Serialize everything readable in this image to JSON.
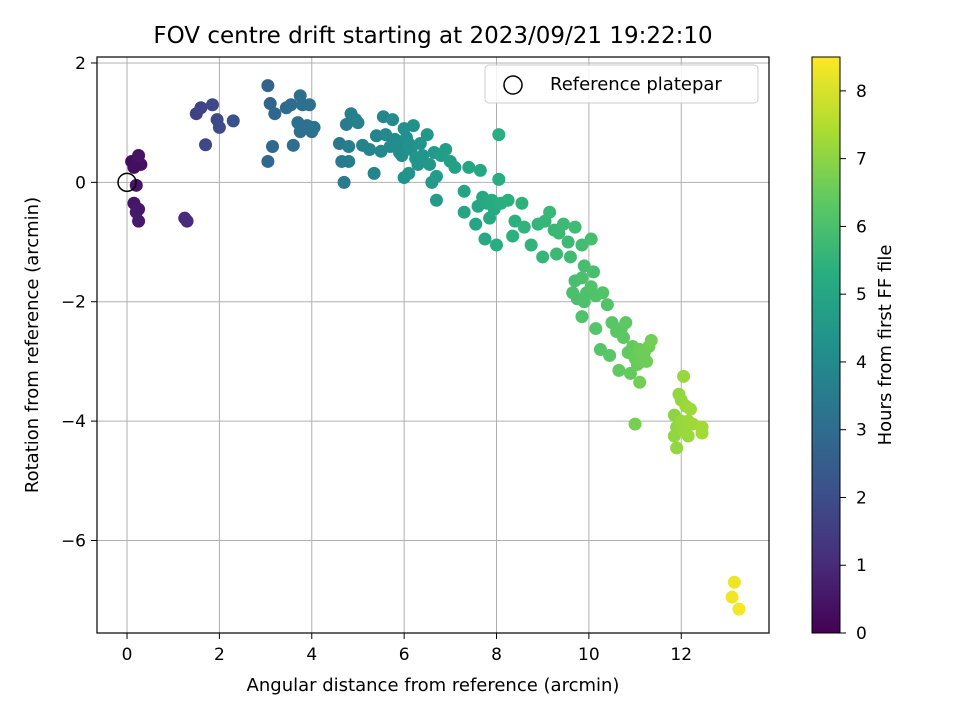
{
  "chart_data": {
    "type": "scatter",
    "title": "FOV centre drift starting at 2023/09/21 19:22:10",
    "xlabel": "Angular distance from reference (arcmin)",
    "ylabel": "Rotation from reference (arcmin)",
    "xlim": [
      -0.65,
      13.9
    ],
    "ylim": [
      -7.55,
      2.1
    ],
    "xticks": [
      0,
      2,
      4,
      6,
      8,
      10,
      12
    ],
    "yticks": [
      -6,
      -4,
      -2,
      0,
      2
    ],
    "xtick_labels": [
      "0",
      "2",
      "4",
      "6",
      "8",
      "10",
      "12"
    ],
    "ytick_labels": [
      "−6",
      "−4",
      "−2",
      "0",
      "2"
    ],
    "grid": true,
    "legend": {
      "position": "top-right",
      "entries": [
        {
          "label": "Reference platepar",
          "marker": "open-circle"
        }
      ]
    },
    "reference_point": {
      "x": 0,
      "y": 0
    },
    "colorbar": {
      "label": "Hours from first FF file",
      "colormap": "viridis",
      "range": [
        0,
        8.5
      ],
      "ticks": [
        0,
        1,
        2,
        3,
        4,
        5,
        6,
        7,
        8
      ],
      "tick_labels": [
        "0",
        "1",
        "2",
        "3",
        "4",
        "5",
        "6",
        "7",
        "8"
      ]
    },
    "series": [
      {
        "points": [
          {
            "x": 0.1,
            "y": 0.35,
            "c": 0.3
          },
          {
            "x": 0.2,
            "y": 0.3,
            "c": 0.4
          },
          {
            "x": 0.3,
            "y": 0.3,
            "c": 0.4
          },
          {
            "x": 0.25,
            "y": 0.45,
            "c": 0.45
          },
          {
            "x": 0.15,
            "y": 0.25,
            "c": 0.35
          },
          {
            "x": 0.2,
            "y": -0.05,
            "c": 0.5
          },
          {
            "x": 0.15,
            "y": -0.35,
            "c": 0.5
          },
          {
            "x": 0.25,
            "y": -0.45,
            "c": 0.55
          },
          {
            "x": 0.2,
            "y": -0.5,
            "c": 0.55
          },
          {
            "x": 0.25,
            "y": -0.65,
            "c": 0.6
          },
          {
            "x": 1.25,
            "y": -0.6,
            "c": 1.0
          },
          {
            "x": 1.3,
            "y": -0.65,
            "c": 1.05
          },
          {
            "x": 1.5,
            "y": 1.15,
            "c": 1.6
          },
          {
            "x": 1.6,
            "y": 1.25,
            "c": 1.7
          },
          {
            "x": 1.85,
            "y": 1.3,
            "c": 1.8
          },
          {
            "x": 1.95,
            "y": 1.05,
            "c": 1.9
          },
          {
            "x": 2.0,
            "y": 0.92,
            "c": 1.95
          },
          {
            "x": 1.7,
            "y": 0.63,
            "c": 1.85
          },
          {
            "x": 2.3,
            "y": 1.03,
            "c": 2.1
          },
          {
            "x": 3.05,
            "y": 1.62,
            "c": 2.7
          },
          {
            "x": 3.1,
            "y": 1.32,
            "c": 2.75
          },
          {
            "x": 3.2,
            "y": 1.15,
            "c": 2.8
          },
          {
            "x": 3.15,
            "y": 0.6,
            "c": 2.85
          },
          {
            "x": 3.05,
            "y": 0.35,
            "c": 2.9
          },
          {
            "x": 3.45,
            "y": 1.25,
            "c": 2.95
          },
          {
            "x": 3.55,
            "y": 1.3,
            "c": 3.0
          },
          {
            "x": 3.6,
            "y": 0.62,
            "c": 3.05
          },
          {
            "x": 3.75,
            "y": 1.45,
            "c": 3.05
          },
          {
            "x": 3.8,
            "y": 1.3,
            "c": 3.1
          },
          {
            "x": 3.7,
            "y": 1.0,
            "c": 3.1
          },
          {
            "x": 3.75,
            "y": 0.85,
            "c": 3.15
          },
          {
            "x": 3.9,
            "y": 0.95,
            "c": 3.2
          },
          {
            "x": 3.95,
            "y": 1.3,
            "c": 3.15
          },
          {
            "x": 4.0,
            "y": 0.85,
            "c": 3.2
          },
          {
            "x": 4.05,
            "y": 0.92,
            "c": 3.25
          },
          {
            "x": 4.6,
            "y": 0.65,
            "c": 3.4
          },
          {
            "x": 4.65,
            "y": 0.35,
            "c": 3.5
          },
          {
            "x": 4.7,
            "y": 0.0,
            "c": 3.5
          },
          {
            "x": 4.8,
            "y": 0.35,
            "c": 3.55
          },
          {
            "x": 4.8,
            "y": 0.6,
            "c": 3.55
          },
          {
            "x": 4.75,
            "y": 0.97,
            "c": 3.5
          },
          {
            "x": 4.85,
            "y": 1.15,
            "c": 3.6
          },
          {
            "x": 4.95,
            "y": 1.05,
            "c": 3.65
          },
          {
            "x": 5.0,
            "y": 1.0,
            "c": 3.7
          },
          {
            "x": 5.1,
            "y": 0.62,
            "c": 3.75
          },
          {
            "x": 5.25,
            "y": 0.55,
            "c": 3.8
          },
          {
            "x": 5.35,
            "y": 0.15,
            "c": 3.8
          },
          {
            "x": 5.4,
            "y": 0.78,
            "c": 3.85
          },
          {
            "x": 5.5,
            "y": 0.52,
            "c": 3.9
          },
          {
            "x": 5.55,
            "y": 1.1,
            "c": 3.9
          },
          {
            "x": 5.6,
            "y": 0.8,
            "c": 3.95
          },
          {
            "x": 5.7,
            "y": 0.6,
            "c": 4.0
          },
          {
            "x": 5.75,
            "y": 1.05,
            "c": 4.0
          },
          {
            "x": 5.8,
            "y": 0.72,
            "c": 4.05
          },
          {
            "x": 5.85,
            "y": 0.62,
            "c": 4.1
          },
          {
            "x": 5.9,
            "y": 0.5,
            "c": 4.1
          },
          {
            "x": 5.95,
            "y": 0.45,
            "c": 4.15
          },
          {
            "x": 6.0,
            "y": 0.9,
            "c": 4.2
          },
          {
            "x": 6.05,
            "y": 0.75,
            "c": 4.2
          },
          {
            "x": 6.1,
            "y": 0.65,
            "c": 4.25
          },
          {
            "x": 6.15,
            "y": 0.55,
            "c": 4.3
          },
          {
            "x": 6.2,
            "y": 0.95,
            "c": 4.3
          },
          {
            "x": 6.25,
            "y": 0.4,
            "c": 4.35
          },
          {
            "x": 6.3,
            "y": 0.3,
            "c": 4.35
          },
          {
            "x": 6.0,
            "y": 0.08,
            "c": 4.3
          },
          {
            "x": 6.1,
            "y": 0.15,
            "c": 4.35
          },
          {
            "x": 6.35,
            "y": 0.65,
            "c": 4.4
          },
          {
            "x": 6.4,
            "y": 0.45,
            "c": 4.45
          },
          {
            "x": 6.5,
            "y": 0.8,
            "c": 4.5
          },
          {
            "x": 6.55,
            "y": 0.3,
            "c": 4.5
          },
          {
            "x": 6.6,
            "y": 0.0,
            "c": 4.55
          },
          {
            "x": 6.65,
            "y": 0.5,
            "c": 4.55
          },
          {
            "x": 6.7,
            "y": 0.1,
            "c": 4.6
          },
          {
            "x": 6.7,
            "y": -0.3,
            "c": 4.6
          },
          {
            "x": 6.8,
            "y": 0.45,
            "c": 4.65
          },
          {
            "x": 6.9,
            "y": 0.55,
            "c": 4.7
          },
          {
            "x": 7.0,
            "y": 0.35,
            "c": 4.75
          },
          {
            "x": 7.1,
            "y": 0.25,
            "c": 4.8
          },
          {
            "x": 7.3,
            "y": -0.15,
            "c": 4.9
          },
          {
            "x": 7.3,
            "y": -0.5,
            "c": 4.95
          },
          {
            "x": 7.4,
            "y": 0.25,
            "c": 4.95
          },
          {
            "x": 7.55,
            "y": -0.7,
            "c": 5.0
          },
          {
            "x": 7.6,
            "y": -0.4,
            "c": 5.05
          },
          {
            "x": 7.65,
            "y": 0.2,
            "c": 5.05
          },
          {
            "x": 7.7,
            "y": -0.25,
            "c": 5.1
          },
          {
            "x": 7.75,
            "y": -0.95,
            "c": 5.1
          },
          {
            "x": 7.8,
            "y": -0.35,
            "c": 5.15
          },
          {
            "x": 7.85,
            "y": -0.6,
            "c": 5.15
          },
          {
            "x": 7.9,
            "y": -0.3,
            "c": 5.2
          },
          {
            "x": 7.95,
            "y": -0.45,
            "c": 5.2
          },
          {
            "x": 8.0,
            "y": -1.05,
            "c": 5.25
          },
          {
            "x": 8.05,
            "y": 0.05,
            "c": 5.25
          },
          {
            "x": 8.1,
            "y": -0.35,
            "c": 5.3
          },
          {
            "x": 8.05,
            "y": 0.8,
            "c": 5.3
          },
          {
            "x": 8.25,
            "y": -0.3,
            "c": 5.35
          },
          {
            "x": 8.35,
            "y": -0.9,
            "c": 5.4
          },
          {
            "x": 8.4,
            "y": -0.65,
            "c": 5.4
          },
          {
            "x": 8.55,
            "y": -0.35,
            "c": 5.45
          },
          {
            "x": 8.6,
            "y": -0.75,
            "c": 5.5
          },
          {
            "x": 8.75,
            "y": -1.05,
            "c": 5.5
          },
          {
            "x": 8.9,
            "y": -0.7,
            "c": 5.55
          },
          {
            "x": 9.0,
            "y": -1.25,
            "c": 5.6
          },
          {
            "x": 9.05,
            "y": -0.65,
            "c": 5.6
          },
          {
            "x": 9.15,
            "y": -0.5,
            "c": 5.65
          },
          {
            "x": 9.25,
            "y": -0.8,
            "c": 5.65
          },
          {
            "x": 9.3,
            "y": -1.2,
            "c": 5.7
          },
          {
            "x": 9.35,
            "y": -0.85,
            "c": 5.7
          },
          {
            "x": 9.45,
            "y": -0.7,
            "c": 5.75
          },
          {
            "x": 9.55,
            "y": -1.0,
            "c": 5.75
          },
          {
            "x": 9.6,
            "y": -1.25,
            "c": 5.8
          },
          {
            "x": 9.7,
            "y": -0.75,
            "c": 5.8
          },
          {
            "x": 9.85,
            "y": -1.05,
            "c": 5.85
          },
          {
            "x": 9.9,
            "y": -1.4,
            "c": 5.9
          },
          {
            "x": 10.05,
            "y": -0.95,
            "c": 5.9
          },
          {
            "x": 10.1,
            "y": -1.5,
            "c": 5.95
          },
          {
            "x": 9.7,
            "y": -1.65,
            "c": 5.95
          },
          {
            "x": 9.65,
            "y": -1.85,
            "c": 6.0
          },
          {
            "x": 9.75,
            "y": -1.95,
            "c": 6.0
          },
          {
            "x": 9.85,
            "y": -1.6,
            "c": 6.0
          },
          {
            "x": 9.9,
            "y": -2.0,
            "c": 6.05
          },
          {
            "x": 9.95,
            "y": -1.85,
            "c": 6.05
          },
          {
            "x": 10.05,
            "y": -1.75,
            "c": 6.1
          },
          {
            "x": 10.15,
            "y": -1.9,
            "c": 6.1
          },
          {
            "x": 9.85,
            "y": -2.25,
            "c": 6.1
          },
          {
            "x": 10.3,
            "y": -1.85,
            "c": 6.15
          },
          {
            "x": 10.4,
            "y": -2.05,
            "c": 6.15
          },
          {
            "x": 10.15,
            "y": -2.45,
            "c": 6.2
          },
          {
            "x": 10.25,
            "y": -2.8,
            "c": 6.2
          },
          {
            "x": 10.45,
            "y": -2.9,
            "c": 6.25
          },
          {
            "x": 10.5,
            "y": -2.35,
            "c": 6.25
          },
          {
            "x": 10.6,
            "y": -2.5,
            "c": 6.3
          },
          {
            "x": 10.7,
            "y": -2.45,
            "c": 6.3
          },
          {
            "x": 10.75,
            "y": -2.6,
            "c": 6.35
          },
          {
            "x": 10.8,
            "y": -2.35,
            "c": 6.35
          },
          {
            "x": 10.65,
            "y": -3.15,
            "c": 6.4
          },
          {
            "x": 10.85,
            "y": -2.85,
            "c": 6.4
          },
          {
            "x": 10.9,
            "y": -3.2,
            "c": 6.45
          },
          {
            "x": 10.95,
            "y": -2.75,
            "c": 6.45
          },
          {
            "x": 11.0,
            "y": -2.95,
            "c": 6.5
          },
          {
            "x": 11.05,
            "y": -3.05,
            "c": 6.5
          },
          {
            "x": 11.1,
            "y": -2.8,
            "c": 6.55
          },
          {
            "x": 11.15,
            "y": -3.0,
            "c": 6.55
          },
          {
            "x": 11.2,
            "y": -2.85,
            "c": 6.6
          },
          {
            "x": 11.25,
            "y": -3.0,
            "c": 6.6
          },
          {
            "x": 11.3,
            "y": -2.75,
            "c": 6.6
          },
          {
            "x": 11.35,
            "y": -2.65,
            "c": 6.65
          },
          {
            "x": 11.1,
            "y": -3.35,
            "c": 6.65
          },
          {
            "x": 11.0,
            "y": -4.05,
            "c": 6.7
          },
          {
            "x": 11.85,
            "y": -3.9,
            "c": 7.0
          },
          {
            "x": 11.9,
            "y": -4.1,
            "c": 7.05
          },
          {
            "x": 11.85,
            "y": -4.25,
            "c": 7.05
          },
          {
            "x": 11.9,
            "y": -4.45,
            "c": 7.1
          },
          {
            "x": 11.95,
            "y": -3.55,
            "c": 7.1
          },
          {
            "x": 12.0,
            "y": -3.65,
            "c": 7.1
          },
          {
            "x": 12.05,
            "y": -3.25,
            "c": 7.15
          },
          {
            "x": 12.0,
            "y": -4.0,
            "c": 7.15
          },
          {
            "x": 12.05,
            "y": -4.15,
            "c": 7.15
          },
          {
            "x": 12.1,
            "y": -3.75,
            "c": 7.2
          },
          {
            "x": 12.15,
            "y": -4.0,
            "c": 7.2
          },
          {
            "x": 12.15,
            "y": -4.25,
            "c": 7.2
          },
          {
            "x": 12.2,
            "y": -3.8,
            "c": 7.25
          },
          {
            "x": 12.25,
            "y": -4.05,
            "c": 7.25
          },
          {
            "x": 12.45,
            "y": -4.1,
            "c": 7.3
          },
          {
            "x": 12.45,
            "y": -4.2,
            "c": 7.3
          },
          {
            "x": 13.15,
            "y": -6.7,
            "c": 8.3
          },
          {
            "x": 13.1,
            "y": -6.95,
            "c": 8.35
          },
          {
            "x": 13.25,
            "y": -7.15,
            "c": 8.4
          }
        ]
      }
    ]
  }
}
